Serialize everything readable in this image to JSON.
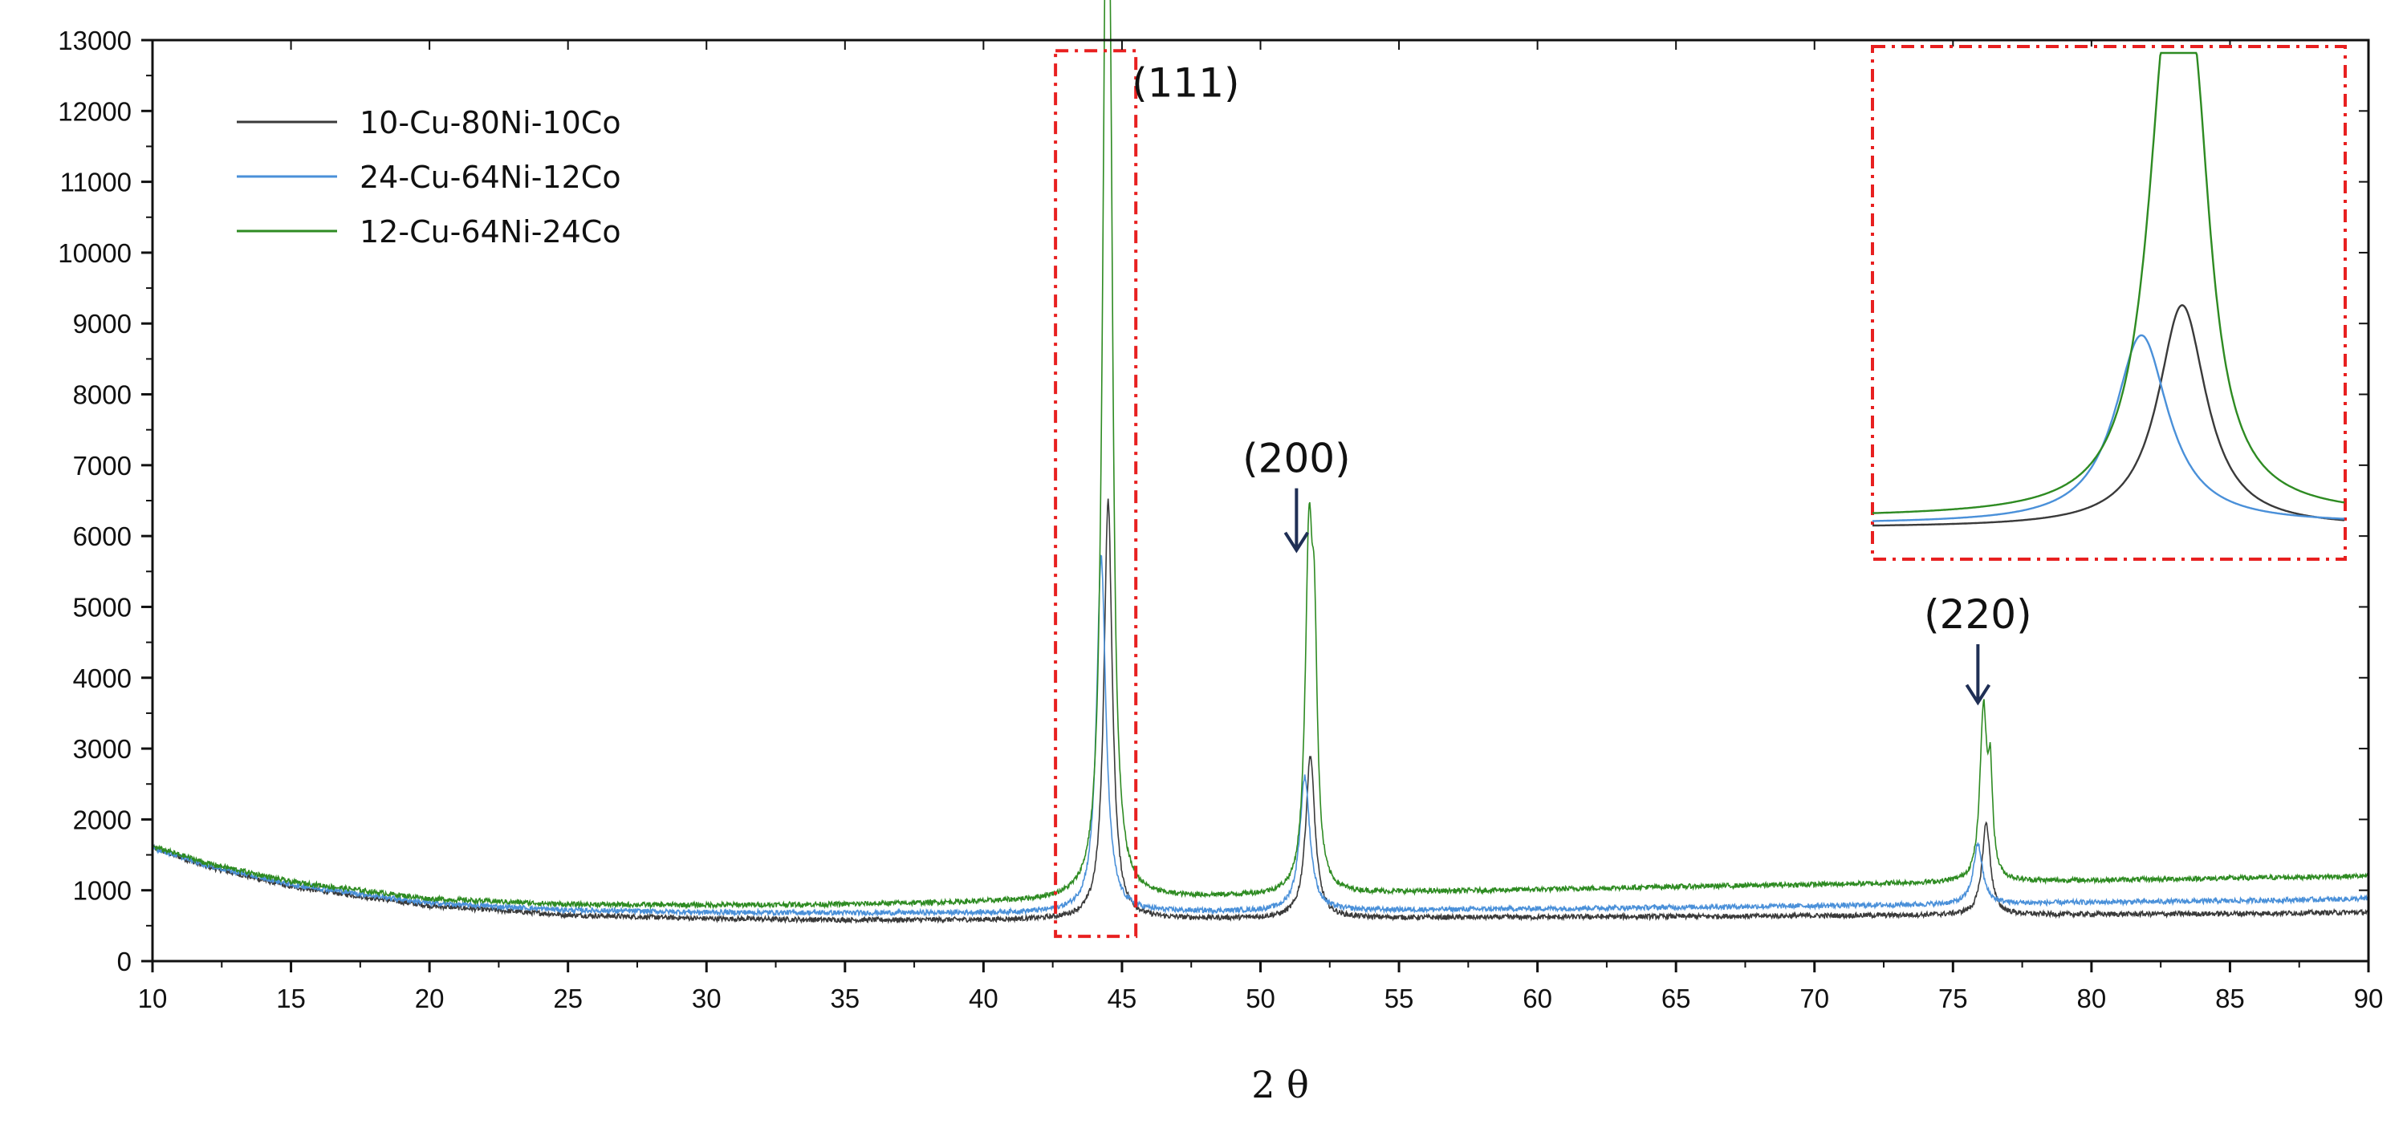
{
  "chart_data": {
    "type": "line",
    "title": "",
    "xlabel": "2 θ",
    "ylabel": "",
    "xlim": [
      10,
      90
    ],
    "ylim": [
      0,
      13000
    ],
    "x_ticks": [
      "10",
      "15",
      "20",
      "25",
      "30",
      "35",
      "40",
      "45",
      "50",
      "55",
      "60",
      "65",
      "70",
      "75",
      "80",
      "85",
      "90"
    ],
    "y_ticks": [
      "0",
      "1000",
      "2000",
      "3000",
      "4000",
      "5000",
      "6000",
      "7000",
      "8000",
      "9000",
      "10000",
      "11000",
      "12000",
      "13000"
    ],
    "grid": false,
    "legend": "top-left",
    "series": [
      {
        "name": "10-Cu-80Ni-10Co",
        "color": "#3a3a3a",
        "baseline": [
          [
            10,
            1600
          ],
          [
            12,
            1330
          ],
          [
            15,
            1050
          ],
          [
            20,
            780
          ],
          [
            25,
            650
          ],
          [
            30,
            600
          ],
          [
            35,
            580
          ],
          [
            40,
            580
          ],
          [
            45,
            590
          ],
          [
            50,
            600
          ],
          [
            55,
            610
          ],
          [
            60,
            620
          ],
          [
            65,
            630
          ],
          [
            70,
            640
          ],
          [
            75,
            650
          ],
          [
            80,
            660
          ],
          [
            85,
            670
          ],
          [
            90,
            690
          ]
        ],
        "peaks": [
          {
            "x": 44.5,
            "y": 6500,
            "width": 0.18
          },
          {
            "x": 51.8,
            "y": 2900,
            "width": 0.2
          },
          {
            "x": 76.2,
            "y": 1950,
            "width": 0.18
          }
        ]
      },
      {
        "name": "24-Cu-64Ni-12Co",
        "color": "#4a90d9",
        "baseline": [
          [
            10,
            1600
          ],
          [
            12,
            1350
          ],
          [
            15,
            1080
          ],
          [
            20,
            820
          ],
          [
            25,
            720
          ],
          [
            30,
            690
          ],
          [
            35,
            680
          ],
          [
            40,
            680
          ],
          [
            45,
            690
          ],
          [
            50,
            700
          ],
          [
            55,
            720
          ],
          [
            60,
            740
          ],
          [
            65,
            760
          ],
          [
            70,
            780
          ],
          [
            75,
            800
          ],
          [
            80,
            830
          ],
          [
            85,
            850
          ],
          [
            90,
            880
          ]
        ],
        "peaks": [
          {
            "x": 44.25,
            "y": 5700,
            "width": 0.2
          },
          {
            "x": 51.6,
            "y": 2600,
            "width": 0.22
          },
          {
            "x": 75.9,
            "y": 1650,
            "width": 0.2
          }
        ]
      },
      {
        "name": "12-Cu-64Ni-24Co",
        "color": "#2e8b22",
        "baseline": [
          [
            10,
            1620
          ],
          [
            12,
            1380
          ],
          [
            15,
            1120
          ],
          [
            20,
            880
          ],
          [
            25,
            800
          ],
          [
            30,
            790
          ],
          [
            35,
            800
          ],
          [
            40,
            830
          ],
          [
            45,
            870
          ],
          [
            50,
            920
          ],
          [
            55,
            970
          ],
          [
            60,
            1010
          ],
          [
            65,
            1050
          ],
          [
            70,
            1080
          ],
          [
            75,
            1110
          ],
          [
            80,
            1140
          ],
          [
            85,
            1170
          ],
          [
            90,
            1200
          ]
        ],
        "peaks": [
          {
            "x": 44.42,
            "y": 12800,
            "width": 0.16
          },
          {
            "x": 44.58,
            "y": 7600,
            "width": 0.12
          },
          {
            "x": 51.75,
            "y": 5700,
            "width": 0.16
          },
          {
            "x": 51.95,
            "y": 3700,
            "width": 0.12
          },
          {
            "x": 76.1,
            "y": 3500,
            "width": 0.15
          },
          {
            "x": 76.35,
            "y": 2400,
            "width": 0.1
          }
        ]
      }
    ],
    "peak_labels": [
      {
        "text": "(111)",
        "x": 47.3,
        "y": 12200,
        "arrow": false
      },
      {
        "text": "(200)",
        "x": 51.3,
        "y": 6900,
        "arrow": true,
        "arrow_y": 5800
      },
      {
        "text": "(220)",
        "x": 75.9,
        "y": 4700,
        "arrow": true,
        "arrow_y": 3650
      }
    ],
    "highlight_box": {
      "x0": 42.6,
      "x1": 45.5,
      "y0": 350,
      "y1": 12850,
      "color": "#e82020"
    },
    "inset": {
      "x_range": [
        42.6,
        45.5
      ],
      "peaks": [
        {
          "series": "10-Cu-80Ni-10Co",
          "center": 44.48
        },
        {
          "series": "24-Cu-64Ni-12Co",
          "center": 44.27
        },
        {
          "series": "12-Cu-64Ni-24Co",
          "center": 44.42
        }
      ],
      "color": "#e82020"
    }
  }
}
